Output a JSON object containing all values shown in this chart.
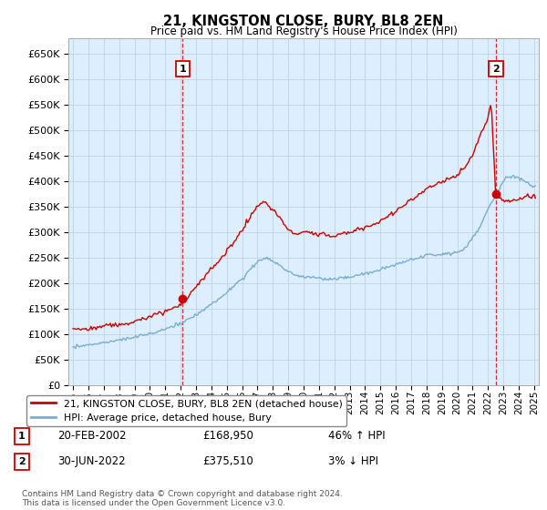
{
  "title": "21, KINGSTON CLOSE, BURY, BL8 2EN",
  "subtitle": "Price paid vs. HM Land Registry's House Price Index (HPI)",
  "ytick_values": [
    0,
    50000,
    100000,
    150000,
    200000,
    250000,
    300000,
    350000,
    400000,
    450000,
    500000,
    550000,
    600000,
    650000
  ],
  "purchase1_year": 2002.13,
  "purchase1_price": 168950,
  "purchase2_year": 2022.5,
  "purchase2_price": 375510,
  "legend_line1": "21, KINGSTON CLOSE, BURY, BL8 2EN (detached house)",
  "legend_line2": "HPI: Average price, detached house, Bury",
  "annotation1_label": "1",
  "annotation1_date": "20-FEB-2002",
  "annotation1_price": "£168,950",
  "annotation1_hpi": "46% ↑ HPI",
  "annotation2_label": "2",
  "annotation2_date": "30-JUN-2022",
  "annotation2_price": "£375,510",
  "annotation2_hpi": "3% ↓ HPI",
  "footer": "Contains HM Land Registry data © Crown copyright and database right 2024.\nThis data is licensed under the Open Government Licence v3.0.",
  "line_color_red": "#cc0000",
  "line_color_blue": "#7aadcf",
  "plot_bg_color": "#ddeeff",
  "grid_color": "#bbccdd",
  "background_color": "#ffffff"
}
